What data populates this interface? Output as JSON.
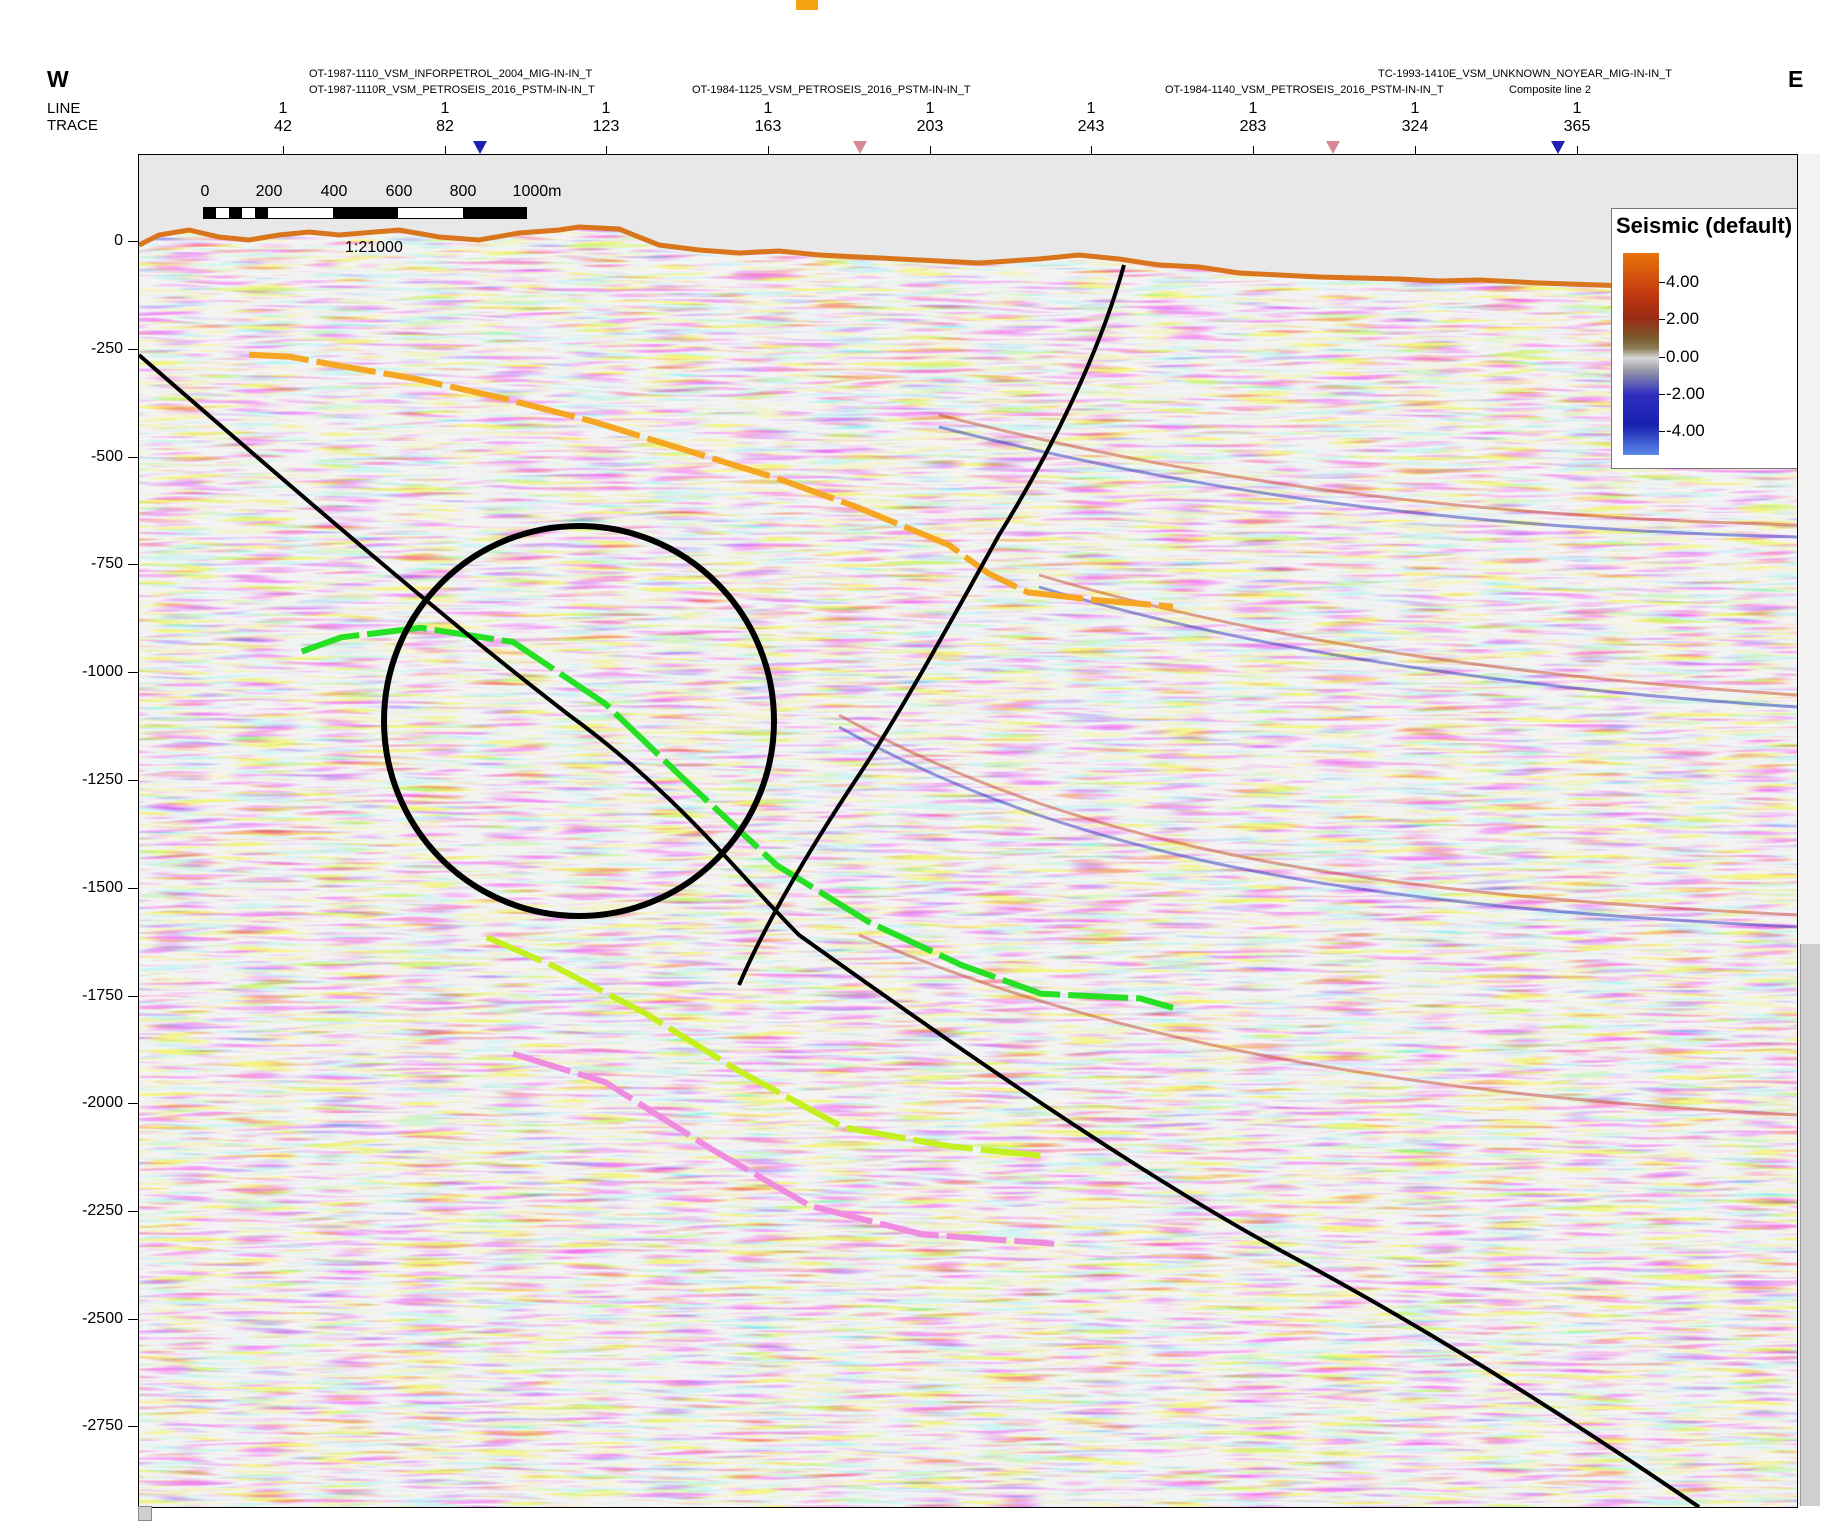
{
  "header": {
    "west": "W",
    "east": "E",
    "row_line": "LINE",
    "row_trace": "TRACE",
    "lines": [
      {
        "name": "OT-1987-1110_VSM_INFORPETROL_2004_MIG-IN-IN_T"
      },
      {
        "name": "OT-1987-1110R_VSM_PETROSEIS_2016_PSTM-IN-IN_T"
      },
      {
        "name": "OT-1984-1125_VSM_PETROSEIS_2016_PSTM-IN-IN_T"
      },
      {
        "name": "OT-1984-1140_VSM_PETROSEIS_2016_PSTM-IN-IN_T"
      },
      {
        "name": "TC-1993-1410E_VSM_UNKNOWN_NOYEAR_MIG-IN-IN_T"
      },
      {
        "name": "Composite line 2"
      }
    ],
    "line_numbers": [
      "1",
      "1",
      "1",
      "1",
      "1",
      "1",
      "1",
      "1",
      "1"
    ],
    "traces": [
      "42",
      "82",
      "123",
      "163",
      "203",
      "243",
      "283",
      "324",
      "365"
    ]
  },
  "y_axis": {
    "ticks": [
      "0",
      "-250",
      "-500",
      "-750",
      "-1000",
      "-1250",
      "-1500",
      "-1750",
      "-2000",
      "-2250",
      "-2500",
      "-2750"
    ]
  },
  "scale_bar": {
    "labels": [
      "0",
      "200",
      "400",
      "600",
      "800",
      "1000m"
    ],
    "scale": "1:21000"
  },
  "legend": {
    "title": "Seismic (default)",
    "values": [
      "4.00",
      "2.00",
      "0.00",
      "-2.00",
      "-4.00"
    ]
  },
  "colors": {
    "positive": "#c43a1a",
    "negative": "#1c28b8",
    "surface": "#d9751c",
    "horizon_orange": "#f5a623",
    "horizon_green": "#26e026",
    "horizon_yellow_green": "#c4f020",
    "horizon_pink": "#f08ce0",
    "fault": "#000000",
    "marker_blue": "#1f1fb0",
    "marker_pink": "#d88a98"
  },
  "chart_data": {
    "type": "seismic-section",
    "y_unit": "m",
    "ylim": [
      -2900,
      150
    ],
    "horizons": [
      {
        "color": "orange",
        "points": [
          [
            -500,
            10
          ],
          [
            -440,
            12
          ],
          [
            -360,
            22
          ],
          [
            -250,
            35
          ],
          [
            -120,
            55
          ],
          [
            20,
            80
          ],
          [
            160,
            110
          ],
          [
            300,
            140
          ],
          [
            420,
            170
          ],
          [
            560,
            210
          ],
          [
            620,
            240
          ],
          [
            680,
            260
          ],
          [
            780,
            268
          ],
          [
            900,
            275
          ]
        ]
      },
      {
        "color": "green",
        "points": [
          [
            -420,
            95
          ],
          [
            -360,
            80
          ],
          [
            -240,
            70
          ],
          [
            -100,
            85
          ],
          [
            40,
            150
          ],
          [
            160,
            230
          ],
          [
            300,
            320
          ],
          [
            440,
            380
          ],
          [
            580,
            425
          ],
          [
            700,
            455
          ],
          [
            850,
            460
          ],
          [
            900,
            470
          ]
        ]
      },
      {
        "color": "yellow-green",
        "points": [
          [
            -140,
            250
          ],
          [
            -40,
            280
          ],
          [
            100,
            330
          ],
          [
            240,
            390
          ],
          [
            400,
            450
          ],
          [
            560,
            470
          ],
          [
            700,
            480
          ]
        ]
      },
      {
        "color": "pink",
        "points": [
          [
            -100,
            300
          ],
          [
            40,
            330
          ],
          [
            200,
            400
          ],
          [
            350,
            460
          ],
          [
            520,
            490
          ],
          [
            720,
            500
          ]
        ]
      }
    ]
  }
}
